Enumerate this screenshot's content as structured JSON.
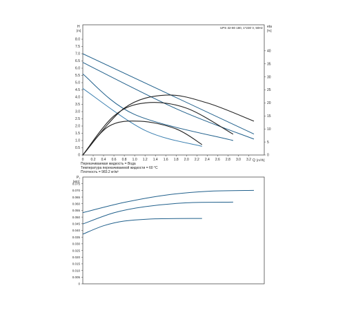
{
  "chart_data": [
    {
      "type": "line",
      "title": "UPS 32-80 180, 1*230 V, 50Hz",
      "y_axis_label": "H",
      "y_axis_unit": "[m]",
      "y2_axis_label": "eta",
      "y2_axis_unit": "[%]",
      "x_axis_label": "Q",
      "x_axis_unit": "[m³/h]",
      "xlim": [
        0,
        3.5
      ],
      "ylim": [
        0,
        9
      ],
      "y2lim": [
        0,
        50
      ],
      "grid": false,
      "x_tick_labels": [
        "0",
        "0.2",
        "0.4",
        "0.6",
        "0.8",
        "1.0",
        "1.2",
        "1.4",
        "1.6",
        "1.8",
        "2.0",
        "2.2",
        "2.4",
        "2.6",
        "2.8",
        "3.0",
        "3.2"
      ],
      "y_tick_labels": [
        "0",
        "0.5",
        "1.0",
        "1.5",
        "2.0",
        "2.5",
        "3.0",
        "3.5",
        "4.0",
        "4.5",
        "5.0",
        "5.5",
        "6.0",
        "6.5",
        "7.0",
        "7.5",
        "8.0"
      ],
      "y2_tick_labels": [
        "0",
        "5",
        "10",
        "15",
        "20",
        "25",
        "30",
        "35",
        "40"
      ],
      "series": [
        {
          "kind": "head",
          "color": "#1f5f8b",
          "x": [
            0,
            3.3
          ],
          "y": [
            7.0,
            1.45
          ]
        },
        {
          "kind": "head",
          "color": "#1f5f8b",
          "x": [
            0,
            1.8,
            3.3
          ],
          "y": [
            6.4,
            3.2,
            1.1
          ]
        },
        {
          "kind": "head",
          "color": "#1f5f8b",
          "x": [
            0,
            1.0,
            2.9
          ],
          "y": [
            5.6,
            2.8,
            1.0
          ]
        },
        {
          "kind": "head",
          "color": "#3a7fb0",
          "x": [
            0,
            1.2,
            2.3
          ],
          "y": [
            4.6,
            1.7,
            0.6
          ]
        },
        {
          "kind": "efficiency",
          "color": "#222222",
          "x": [
            0,
            0.8,
            1.6,
            2.4,
            3.3
          ],
          "y": [
            0,
            18,
            23,
            20,
            13
          ]
        },
        {
          "kind": "efficiency",
          "color": "#222222",
          "x": [
            0,
            0.6,
            1.2,
            2.0,
            2.9
          ],
          "y": [
            0,
            15,
            20,
            18,
            8
          ]
        },
        {
          "kind": "efficiency",
          "color": "#222222",
          "x": [
            0,
            0.5,
            1.1,
            1.8,
            2.3
          ],
          "y": [
            0,
            11,
            13,
            10,
            4
          ]
        }
      ],
      "annotations": [
        "Перекачиваемая жидкость = Вода",
        "Температура перекачиваемой жидкости = 60 °C",
        "Плотность = 983.2 кг/м³"
      ]
    },
    {
      "type": "line",
      "y_axis_label": "P₁",
      "y_axis_unit": "[кВт]",
      "xlim": [
        0,
        3.5
      ],
      "ylim": [
        0,
        0.08
      ],
      "grid": false,
      "y_tick_labels": [
        "0",
        "0.005",
        "0.010",
        "0.015",
        "0.020",
        "0.025",
        "0.030",
        "0.035",
        "0.040",
        "0.045",
        "0.050",
        "0.055",
        "0.060",
        "0.065",
        "0.070",
        "0.075"
      ],
      "series": [
        {
          "kind": "power",
          "color": "#1f5f8b",
          "x": [
            0,
            0.8,
            1.6,
            2.4,
            3.3
          ],
          "y": [
            0.0533,
            0.061,
            0.0665,
            0.0693,
            0.07
          ]
        },
        {
          "kind": "power",
          "color": "#1f5f8b",
          "x": [
            0,
            0.6,
            1.2,
            2.0,
            2.9
          ],
          "y": [
            0.0448,
            0.0532,
            0.0578,
            0.0607,
            0.0612
          ]
        },
        {
          "kind": "power",
          "color": "#1f5f8b",
          "x": [
            0,
            0.4,
            0.8,
            1.4,
            2.3
          ],
          "y": [
            0.0372,
            0.0435,
            0.047,
            0.0487,
            0.049
          ]
        }
      ]
    }
  ]
}
